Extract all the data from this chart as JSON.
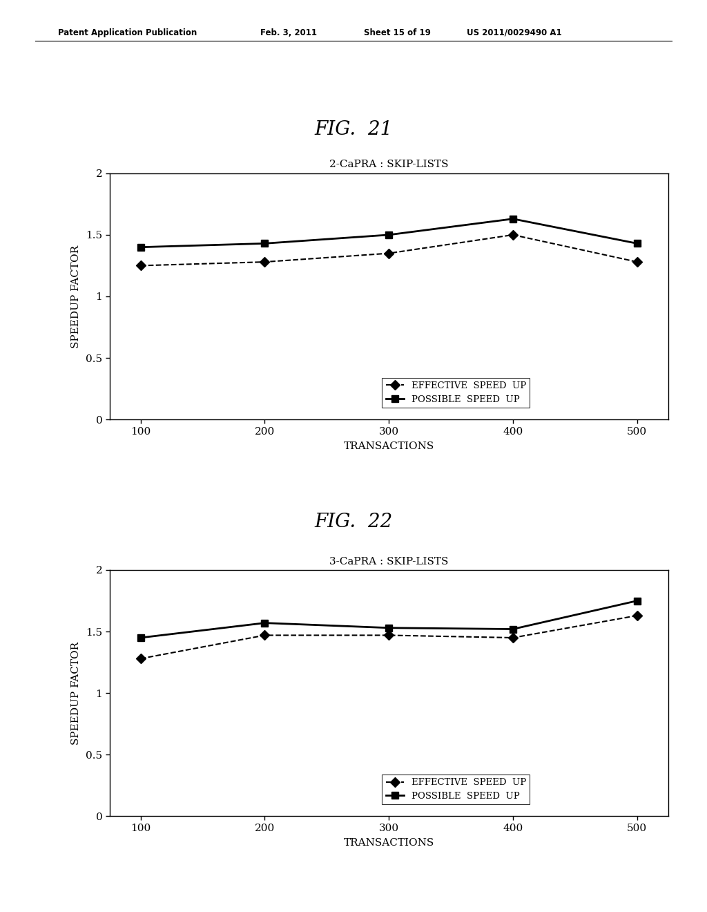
{
  "fig21": {
    "title_fig": "FIG.  21",
    "chart_title": "2-CaPRA : SKIP-LISTS",
    "xlabel": "TRANSACTIONS",
    "ylabel": "SPEEDUP FACTOR",
    "x": [
      100,
      200,
      300,
      400,
      500
    ],
    "effective_speed_up": [
      1.25,
      1.28,
      1.35,
      1.5,
      1.28
    ],
    "possible_speed_up": [
      1.4,
      1.43,
      1.5,
      1.63,
      1.43
    ],
    "ylim": [
      0,
      2
    ],
    "yticks": [
      0,
      0.5,
      1,
      1.5,
      2
    ],
    "ytick_labels": [
      "0",
      "0.5",
      "1",
      "1.5",
      "2"
    ],
    "legend_effective": "EFFECTIVE  SPEED  UP",
    "legend_possible": "POSSIBLE  SPEED  UP"
  },
  "fig22": {
    "title_fig": "FIG.  22",
    "chart_title": "3-CaPRA : SKIP-LISTS",
    "xlabel": "TRANSACTIONS",
    "ylabel": "SPEEDUP FACTOR",
    "x": [
      100,
      200,
      300,
      400,
      500
    ],
    "effective_speed_up": [
      1.28,
      1.47,
      1.47,
      1.45,
      1.63
    ],
    "possible_speed_up": [
      1.45,
      1.57,
      1.53,
      1.52,
      1.75
    ],
    "ylim": [
      0,
      2
    ],
    "yticks": [
      0,
      0.5,
      1,
      1.5,
      2
    ],
    "ytick_labels": [
      "0",
      "0.5",
      "1",
      "1.5",
      "2"
    ],
    "legend_effective": "EFFECTIVE  SPEED  UP",
    "legend_possible": "POSSIBLE  SPEED  UP"
  },
  "header_text": "Patent Application Publication",
  "header_date": "Feb. 3, 2011",
  "header_sheet": "Sheet 15 of 19",
  "header_pub": "US 2011/0029490 A1",
  "bg_color": "#ffffff",
  "line_color": "#000000"
}
